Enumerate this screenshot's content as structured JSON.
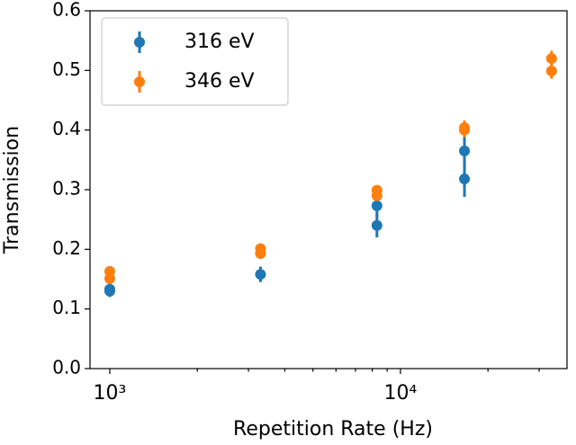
{
  "chart_data": {
    "type": "scatter",
    "x_label": "Repetition Rate (Hz)",
    "y_label": "Transmission",
    "xscale": "log",
    "xlim": [
      855,
      37400
    ],
    "ylim": [
      0,
      0.6
    ],
    "xticks": [
      {
        "value": 1000,
        "label": "10³"
      },
      {
        "value": 10000,
        "label": "10⁴"
      }
    ],
    "xminor_ticks": [
      2000,
      3000,
      4000,
      5000,
      6000,
      7000,
      8000,
      9000,
      20000,
      30000
    ],
    "yticks": [
      {
        "value": 0,
        "label": "0.0"
      },
      0.1,
      0.2,
      0.3,
      0.4,
      0.5,
      0.6
    ],
    "legend": "upper left",
    "series": [
      {
        "name": "316 eV",
        "color": "#1f77b4",
        "x": [
          1000,
          1000,
          3300,
          8300,
          8300,
          16600,
          16600
        ],
        "values": [
          0.133,
          0.13,
          0.158,
          0.273,
          0.24,
          0.365,
          0.318
        ],
        "errors": [
          0.01,
          0.01,
          0.013,
          0.02,
          0.02,
          0.03,
          0.03
        ]
      },
      {
        "name": "346 eV",
        "color": "#ff7f0e",
        "x": [
          1000,
          1000,
          3300,
          3300,
          8300,
          8300,
          16600,
          16600,
          33100,
          33100
        ],
        "values": [
          0.163,
          0.151,
          0.201,
          0.193,
          0.299,
          0.29,
          0.404,
          0.4,
          0.52,
          0.499
        ],
        "errors": [
          0.008,
          0.008,
          0.008,
          0.008,
          0.008,
          0.008,
          0.012,
          0.012,
          0.013,
          0.013
        ]
      }
    ]
  }
}
